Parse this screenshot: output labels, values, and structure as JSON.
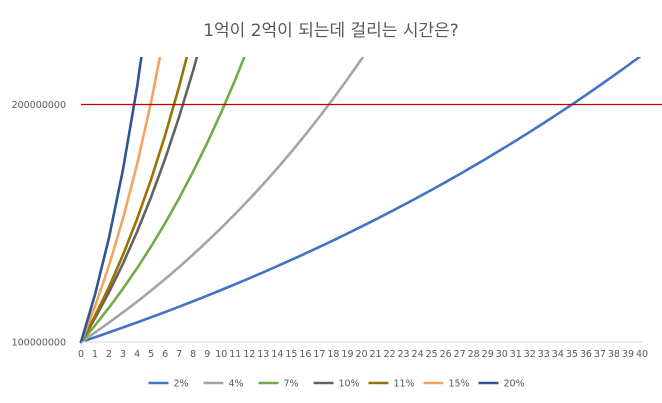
{
  "chart_data": {
    "type": "line",
    "title": "1억이 2억이 되는데 걸리는 시간은?",
    "xlabel": "",
    "ylabel": "",
    "categories": [
      0,
      1,
      2,
      3,
      4,
      5,
      6,
      7,
      8,
      9,
      10,
      11,
      12,
      13,
      14,
      15,
      16,
      17,
      18,
      19,
      20,
      21,
      22,
      23,
      24,
      25,
      26,
      27,
      28,
      29,
      30,
      31,
      32,
      33,
      34,
      35,
      36,
      37,
      38,
      39,
      40
    ],
    "ylim": [
      100000000,
      220000000
    ],
    "y_ticks": [
      100000000,
      200000000
    ],
    "y_tick_labels": [
      "100000000",
      "200000000"
    ],
    "reference_line": {
      "value": 200000000,
      "color": "#c00000"
    },
    "grid": false,
    "legend_position": "bottom",
    "series": [
      {
        "name": "2%",
        "rate": 0.02,
        "color": "#4472c4"
      },
      {
        "name": "4%",
        "rate": 0.04,
        "color": "#a5a5a5"
      },
      {
        "name": "7%",
        "rate": 0.07,
        "color": "#70ad47"
      },
      {
        "name": "10%",
        "rate": 0.1,
        "color": "#636363"
      },
      {
        "name": "11%",
        "rate": 0.11,
        "color": "#997300"
      },
      {
        "name": "15%",
        "rate": 0.15,
        "color": "#f4a460"
      },
      {
        "name": "20%",
        "rate": 0.2,
        "color": "#2f5597"
      }
    ]
  }
}
